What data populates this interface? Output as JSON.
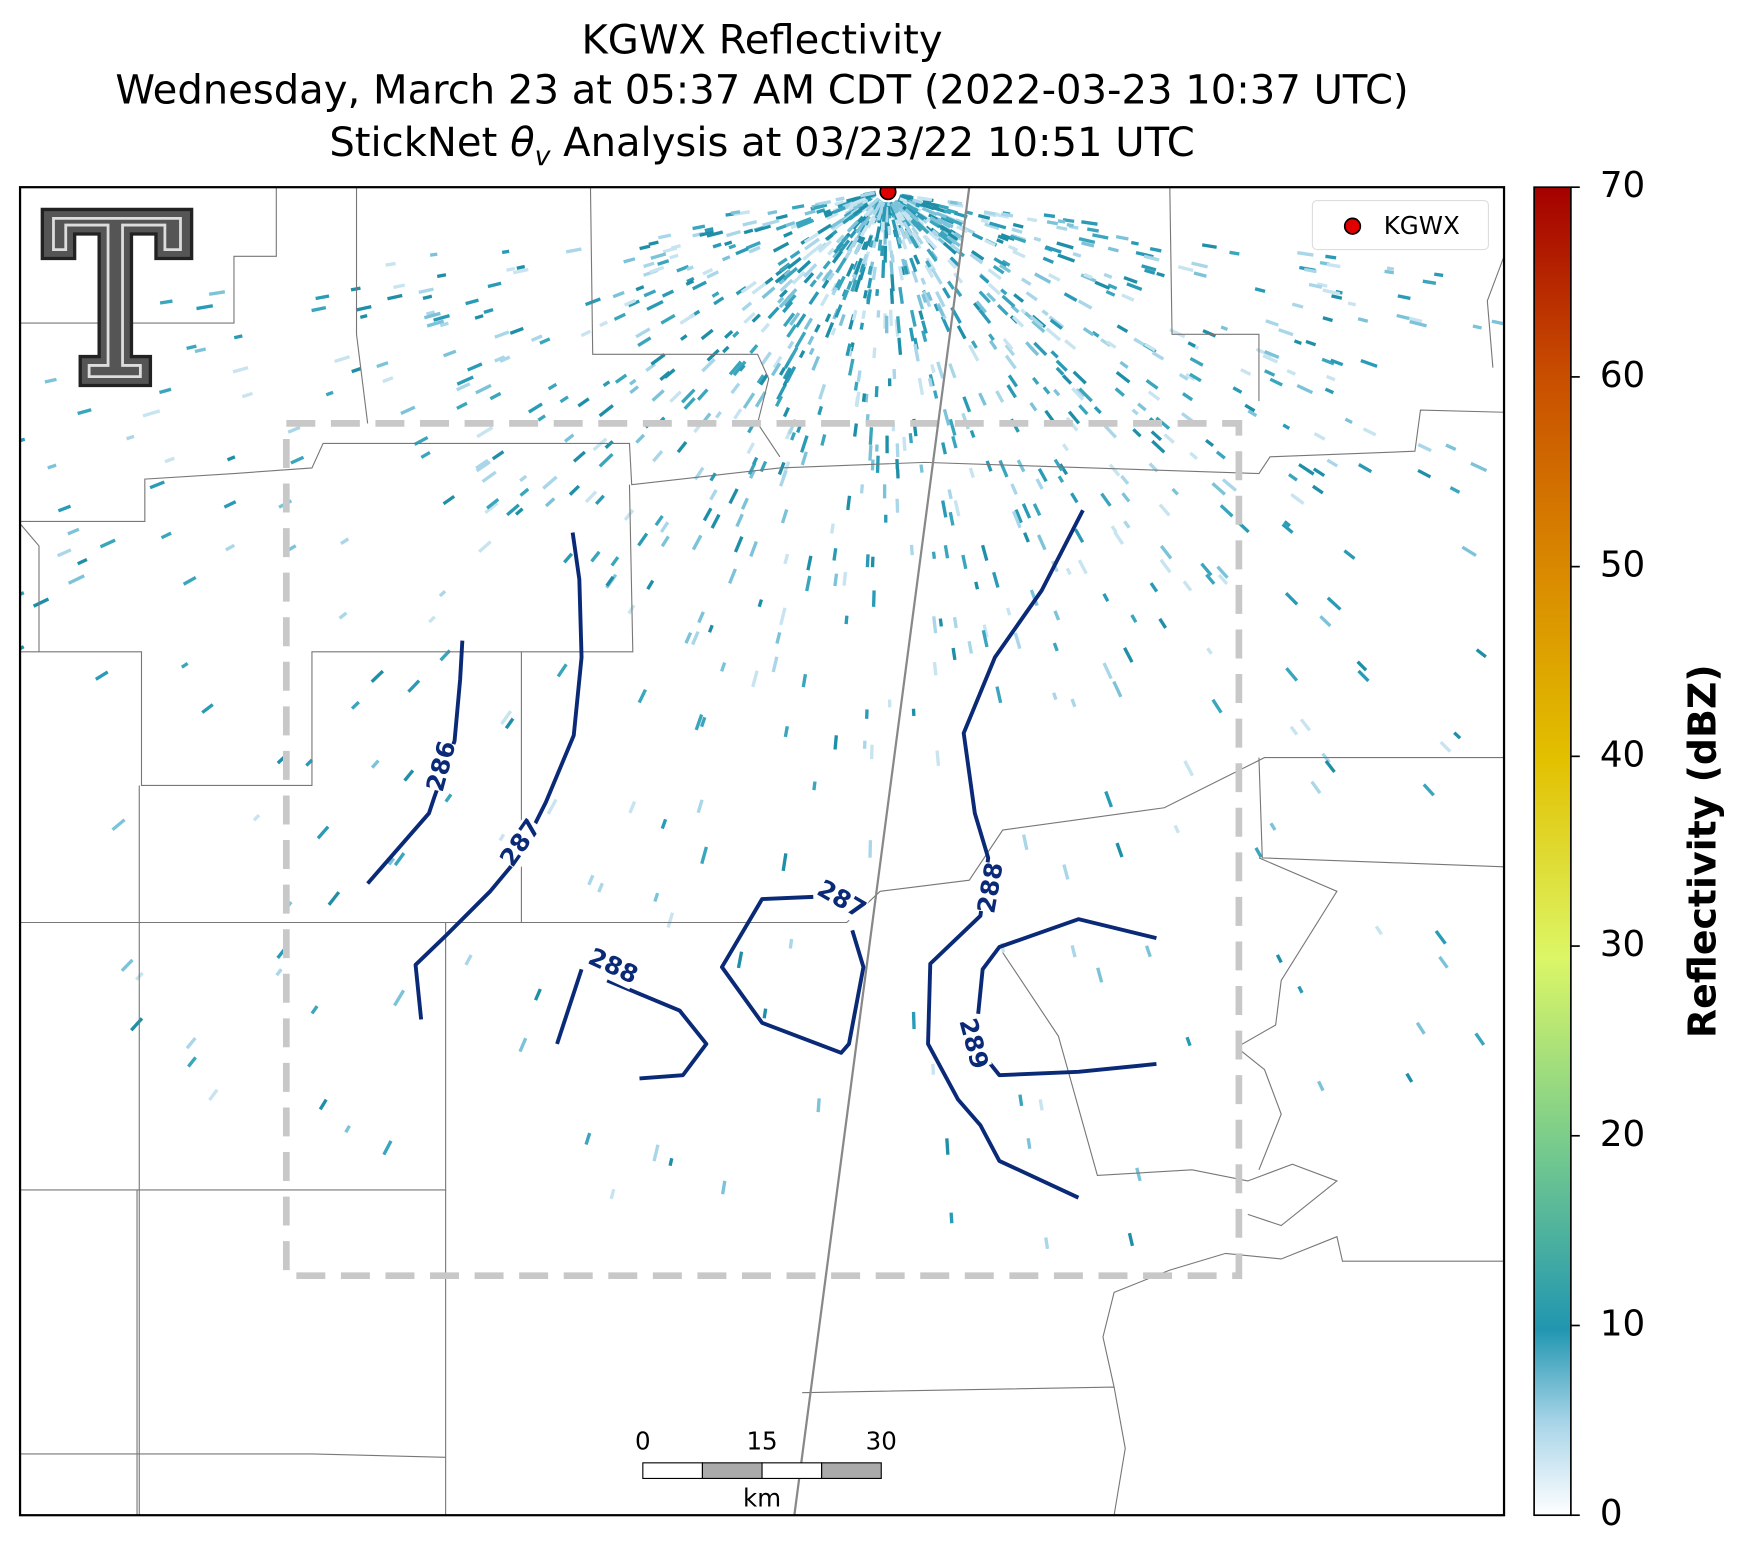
{
  "title": {
    "line1": "KGWX Reflectivity",
    "line2": "Wednesday, March 23 at 05:37 AM CDT (2022-03-23 10:37 UTC)",
    "line3_prefix": "StickNet ",
    "line3_symbol": "θ",
    "line3_subscript": "v",
    "line3_suffix": " Analysis at 03/23/22 10:51 UTC"
  },
  "legend": {
    "label": "KGWX"
  },
  "contour_labels": [
    "286",
    "287",
    "288",
    "287",
    "288",
    "289"
  ],
  "scale_bar": {
    "ticks": [
      "0",
      "15",
      "30"
    ],
    "unit": "km"
  },
  "colorbar": {
    "label": "Reflectivity (dBZ)",
    "lim": [
      0,
      70
    ],
    "ticks": [
      0,
      10,
      20,
      30,
      40,
      50,
      60,
      70
    ]
  }
}
